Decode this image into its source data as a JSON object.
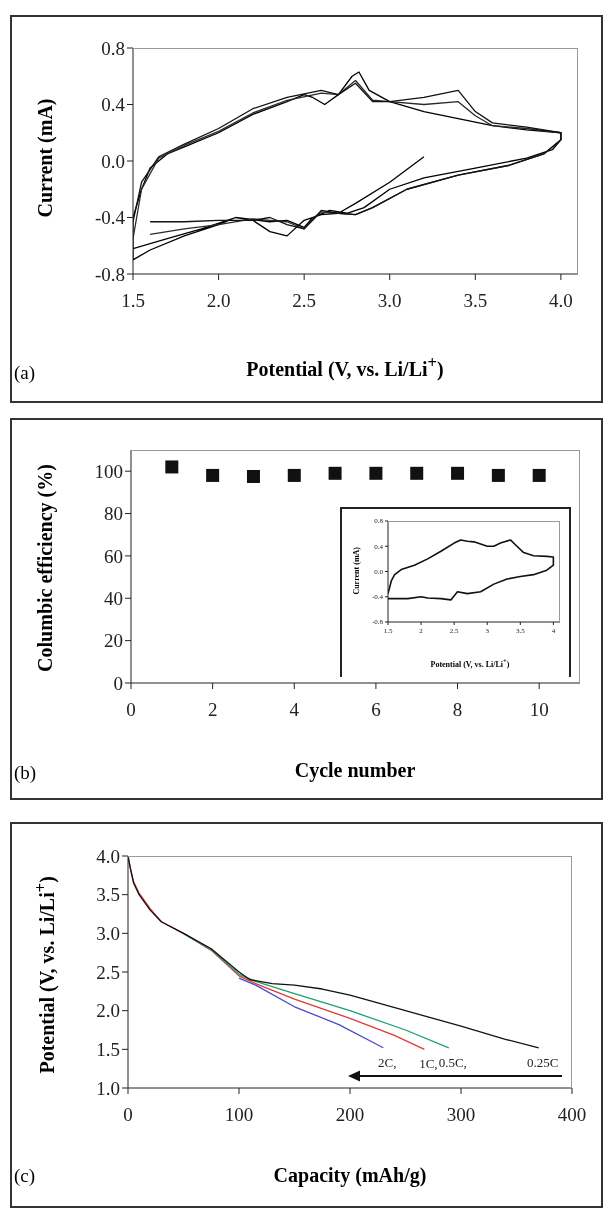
{
  "chart_data": [
    {
      "type": "line",
      "xlabel": "Potential (V, vs. Li/Li$^{+}$)",
      "ylabel": "Current (mA)",
      "annotations": [
        "(a)"
      ],
      "xlim": [
        1.5,
        4.1
      ],
      "xticks": [
        {
          "value": 1.5,
          "label": "1.5"
        },
        {
          "value": 2,
          "label": "2.0"
        },
        {
          "value": 2.5,
          "label": "2.5"
        },
        {
          "value": 3,
          "label": "3.0"
        },
        {
          "value": 3.5,
          "label": "3.5"
        },
        {
          "value": 4,
          "label": "4.0"
        }
      ],
      "ylim": [
        -0.8,
        0.8
      ],
      "yticks": [
        {
          "value": -0.8,
          "label": "-0.8"
        },
        {
          "value": -0.4,
          "label": "-0.4"
        },
        {
          "value": 0,
          "label": "0.0"
        },
        {
          "value": 0.4,
          "label": "0.4"
        },
        {
          "value": 0.8,
          "label": "0.8"
        }
      ],
      "grid": false,
      "legend": false,
      "marker": "none",
      "line_style": "solid",
      "series": [
        {
          "color": "#000000",
          "x": [
            3.2,
            3.0,
            2.8,
            2.7,
            2.6,
            2.5,
            2.4,
            2.3,
            2.2,
            2.1,
            2.0,
            1.8,
            1.6,
            1.5,
            1.5,
            1.55,
            1.6,
            1.7,
            1.8,
            2.0,
            2.2,
            2.4,
            2.5,
            2.55,
            2.62,
            2.7,
            2.78,
            2.82,
            2.88,
            3.0,
            3.2,
            3.4,
            3.6,
            3.8,
            4.0,
            4.0,
            3.95,
            3.8,
            3.5,
            3.2,
            3.0,
            2.85,
            2.75,
            2.65,
            2.55,
            2.5,
            2.4,
            2.3,
            2.1,
            1.9,
            1.7,
            1.5
          ],
          "values": [
            0.03,
            -0.15,
            -0.3,
            -0.37,
            -0.38,
            -0.42,
            -0.53,
            -0.5,
            -0.42,
            -0.4,
            -0.45,
            -0.53,
            -0.63,
            -0.7,
            -0.4,
            -0.2,
            -0.05,
            0.05,
            0.1,
            0.2,
            0.33,
            0.42,
            0.47,
            0.45,
            0.4,
            0.47,
            0.6,
            0.63,
            0.5,
            0.42,
            0.35,
            0.3,
            0.25,
            0.22,
            0.2,
            0.15,
            0.08,
            0.02,
            -0.05,
            -0.12,
            -0.2,
            -0.33,
            -0.37,
            -0.35,
            -0.4,
            -0.47,
            -0.42,
            -0.43,
            -0.4,
            -0.48,
            -0.55,
            -0.62
          ]
        },
        {
          "color": "#2a2a2a",
          "x": [
            1.5,
            1.55,
            1.65,
            1.8,
            2.0,
            2.2,
            2.4,
            2.6,
            2.7,
            2.8,
            2.9,
            3.0,
            3.2,
            3.4,
            3.5,
            3.6,
            3.8,
            4.0,
            4.0,
            3.9,
            3.7,
            3.4,
            3.1,
            2.9,
            2.8,
            2.7,
            2.6,
            2.5,
            2.4,
            2.3,
            2.2,
            2.0,
            1.8,
            1.6
          ],
          "values": [
            -0.55,
            -0.2,
            0.02,
            0.11,
            0.21,
            0.34,
            0.43,
            0.48,
            0.47,
            0.57,
            0.43,
            0.42,
            0.4,
            0.42,
            0.32,
            0.25,
            0.23,
            0.2,
            0.15,
            0.05,
            -0.03,
            -0.1,
            -0.2,
            -0.33,
            -0.38,
            -0.37,
            -0.36,
            -0.48,
            -0.43,
            -0.42,
            -0.41,
            -0.45,
            -0.48,
            -0.52
          ]
        },
        {
          "color": "#111111",
          "x": [
            1.5,
            1.55,
            1.65,
            1.8,
            2.0,
            2.2,
            2.4,
            2.6,
            2.7,
            2.8,
            2.9,
            3.0,
            3.2,
            3.4,
            3.5,
            3.6,
            3.8,
            4.0,
            4.0,
            3.9,
            3.7,
            3.4,
            3.1,
            2.9,
            2.8,
            2.7,
            2.6,
            2.5,
            2.4,
            2.3,
            2.2,
            2.0,
            1.8,
            1.6
          ],
          "values": [
            -0.43,
            -0.15,
            0.03,
            0.12,
            0.23,
            0.37,
            0.45,
            0.5,
            0.47,
            0.55,
            0.42,
            0.42,
            0.45,
            0.5,
            0.35,
            0.27,
            0.24,
            0.2,
            0.15,
            0.05,
            -0.03,
            -0.1,
            -0.2,
            -0.33,
            -0.38,
            -0.37,
            -0.35,
            -0.48,
            -0.45,
            -0.4,
            -0.42,
            -0.42,
            -0.43,
            -0.43
          ]
        }
      ]
    },
    {
      "type": "scatter",
      "xlabel": "Cycle number",
      "ylabel": "Columbic efficiency (%)",
      "annotations": [
        "(b)"
      ],
      "xlim": [
        0,
        11
      ],
      "xticks": [
        0,
        2,
        4,
        6,
        8,
        10
      ],
      "ylim": [
        0,
        110
      ],
      "yticks": [
        0,
        20,
        40,
        60,
        80,
        100
      ],
      "grid": false,
      "legend": false,
      "marker": "square",
      "series": [
        {
          "color": "#111111",
          "x": [
            1,
            2,
            3,
            4,
            5,
            6,
            7,
            8,
            9,
            10
          ],
          "values": [
            102,
            98,
            97.5,
            98,
            99,
            99,
            99,
            99,
            98,
            98
          ]
        }
      ]
    },
    {
      "type": "line",
      "xlabel": "Potential (V, vs. Li/Li$^{+}$)",
      "ylabel": "Current (mA)",
      "xlim": [
        1.5,
        4.1
      ],
      "xticks": [
        1.5,
        2,
        2.5,
        3,
        3.5,
        4
      ],
      "ylim": [
        -0.8,
        0.8
      ],
      "yticks": [
        {
          "value": -0.8,
          "label": "-0.8"
        },
        {
          "value": -0.4,
          "label": "-0.4"
        },
        {
          "value": 0,
          "label": "0.0"
        },
        {
          "value": 0.4,
          "label": "0.4"
        },
        {
          "value": 0.8,
          "label": "0.8"
        }
      ],
      "grid": false,
      "legend": false,
      "marker": "none",
      "line_style": "solid",
      "series": [
        {
          "color": "#111111",
          "x": [
            1.5,
            1.55,
            1.6,
            1.7,
            1.9,
            2.1,
            2.3,
            2.5,
            2.6,
            2.7,
            2.8,
            3.0,
            3.1,
            3.2,
            3.35,
            3.45,
            3.55,
            3.7,
            3.9,
            4.0,
            4.0,
            3.9,
            3.7,
            3.5,
            3.3,
            3.1,
            2.9,
            2.7,
            2.55,
            2.45,
            2.3,
            2.1,
            2.0,
            1.8,
            1.6,
            1.5
          ],
          "values": [
            -0.35,
            -0.15,
            -0.05,
            0.03,
            0.1,
            0.2,
            0.32,
            0.45,
            0.5,
            0.48,
            0.47,
            0.4,
            0.4,
            0.45,
            0.5,
            0.4,
            0.3,
            0.25,
            0.24,
            0.23,
            0.1,
            0.02,
            -0.05,
            -0.08,
            -0.12,
            -0.2,
            -0.32,
            -0.35,
            -0.32,
            -0.45,
            -0.43,
            -0.42,
            -0.4,
            -0.43,
            -0.43,
            -0.43
          ]
        }
      ]
    },
    {
      "type": "line",
      "xlabel": "Capacity (mAh/g)",
      "ylabel": "Potential (V, vs. Li/Li$^{+}$)",
      "annotations": [
        "(c)"
      ],
      "xlim": [
        0,
        400
      ],
      "xticks": [
        0,
        100,
        200,
        300,
        400
      ],
      "ylim": [
        1,
        4
      ],
      "yticks": [
        {
          "value": 1,
          "label": "1.0"
        },
        {
          "value": 1.5,
          "label": "1.5"
        },
        {
          "value": 2,
          "label": "2.0"
        },
        {
          "value": 2.5,
          "label": "2.5"
        },
        {
          "value": 3,
          "label": "3.0"
        },
        {
          "value": 3.5,
          "label": "3.5"
        },
        {
          "value": 4,
          "label": "4.0"
        }
      ],
      "grid": false,
      "legend": false,
      "marker": "none",
      "line_style": "solid",
      "series": [
        {
          "name": "2C,",
          "color": "#4a4ac8",
          "x": [
            100,
            115,
            150,
            190,
            230
          ],
          "values": [
            2.42,
            2.33,
            2.05,
            1.82,
            1.52
          ]
        },
        {
          "name": "1C,",
          "color": "#e03a3a",
          "x": [
            0,
            2,
            5,
            10,
            20,
            30,
            50,
            75,
            100,
            115,
            150,
            200,
            240,
            267
          ],
          "values": [
            4.0,
            3.85,
            3.67,
            3.52,
            3.32,
            3.15,
            3.0,
            2.78,
            2.45,
            2.35,
            2.15,
            1.9,
            1.68,
            1.5
          ]
        },
        {
          "name": "0.5C,",
          "color": "#1f9e70",
          "x": [
            50,
            75,
            100,
            115,
            150,
            200,
            250,
            289
          ],
          "values": [
            3.0,
            2.79,
            2.47,
            2.38,
            2.22,
            2.0,
            1.75,
            1.52
          ]
        },
        {
          "name": "0.25C",
          "color": "#111111",
          "x": [
            0,
            2,
            5,
            10,
            20,
            30,
            50,
            75,
            100,
            110,
            130,
            150,
            175,
            200,
            250,
            300,
            340,
            370
          ],
          "values": [
            4.0,
            3.85,
            3.65,
            3.5,
            3.3,
            3.15,
            3.0,
            2.8,
            2.5,
            2.4,
            2.35,
            2.33,
            2.28,
            2.2,
            2.0,
            1.8,
            1.63,
            1.52
          ]
        }
      ]
    }
  ]
}
